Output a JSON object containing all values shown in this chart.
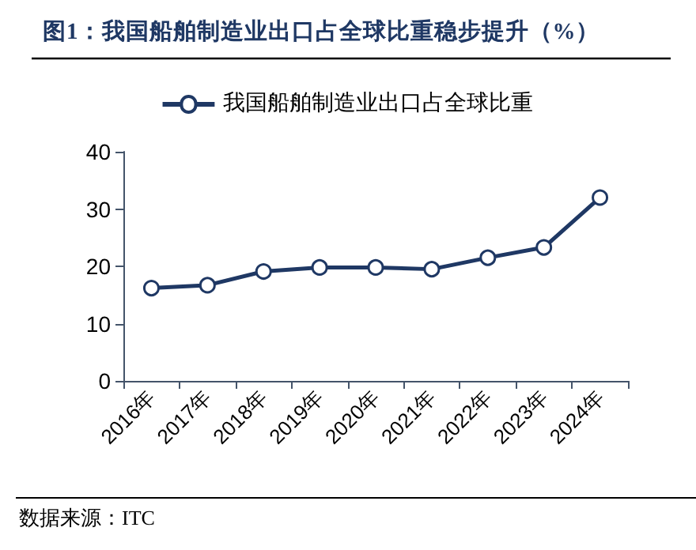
{
  "chart_data": {
    "type": "line",
    "title": "图1：我国船舶制造业出口占全球比重稳步提升（%）",
    "categories": [
      "2016年",
      "2017年",
      "2018年",
      "2019年",
      "2020年",
      "2021年",
      "2022年",
      "2023年",
      "2024年"
    ],
    "series": [
      {
        "name": "我国船舶制造业出口占全球比重",
        "color": "#1f3864",
        "values": [
          16.2,
          16.7,
          19.1,
          19.8,
          19.8,
          19.5,
          21.5,
          23.3,
          32.0
        ]
      }
    ],
    "ylim": [
      0,
      40
    ],
    "yticks": [
      0,
      10,
      20,
      30,
      40
    ],
    "grid": false,
    "legend": "top",
    "marker": "circle",
    "line_style": "solid",
    "annotations": [
      "数据来源：ITC"
    ]
  }
}
